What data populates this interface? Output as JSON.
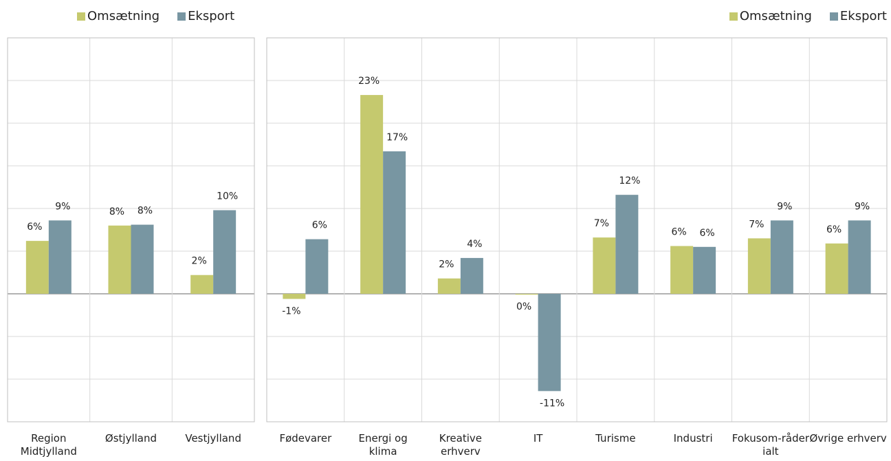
{
  "chart_data": [
    {
      "type": "bar",
      "categories": [
        "Region Midtjylland",
        "Østjylland",
        "Vestjylland"
      ],
      "series": [
        {
          "name": "Omsætning",
          "color": "#c5c96e",
          "values": [
            6.2,
            8.0,
            2.2
          ],
          "value_labels": [
            "6%",
            "8%",
            "2%"
          ]
        },
        {
          "name": "Eksport",
          "color": "#7896a2",
          "values": [
            8.6,
            8.1,
            9.8
          ],
          "value_labels": [
            "9%",
            "8%",
            "10%"
          ]
        }
      ],
      "ylim": [
        -15,
        30
      ],
      "yticks": [
        -15,
        -10,
        -5,
        0,
        5,
        10,
        15,
        20,
        25,
        30
      ],
      "grid": true,
      "legend": "top"
    },
    {
      "type": "bar",
      "categories": [
        "Fødevarer",
        "Energi og klima",
        "Kreative erhverv",
        "IT",
        "Turisme",
        "Industri",
        "Fokusom-råder ialt",
        "Øvrige erhverv"
      ],
      "series": [
        {
          "name": "Omsætning",
          "color": "#c5c96e",
          "values": [
            -0.6,
            23.3,
            1.8,
            -0.1,
            6.6,
            5.6,
            6.5,
            5.9
          ],
          "value_labels": [
            "-1%",
            "23%",
            "2%",
            "0%",
            "7%",
            "6%",
            "7%",
            "6%"
          ]
        },
        {
          "name": "Eksport",
          "color": "#7896a2",
          "values": [
            6.4,
            16.7,
            4.2,
            -11.4,
            11.6,
            5.5,
            8.6,
            8.6
          ],
          "value_labels": [
            "6%",
            "17%",
            "4%",
            "-11%",
            "12%",
            "6%",
            "9%",
            "9%"
          ]
        }
      ],
      "ylim": [
        -15,
        30
      ],
      "yticks": [
        -15,
        -10,
        -5,
        0,
        5,
        10,
        15,
        20,
        25,
        30
      ],
      "grid": true,
      "legend": "top-right"
    }
  ]
}
